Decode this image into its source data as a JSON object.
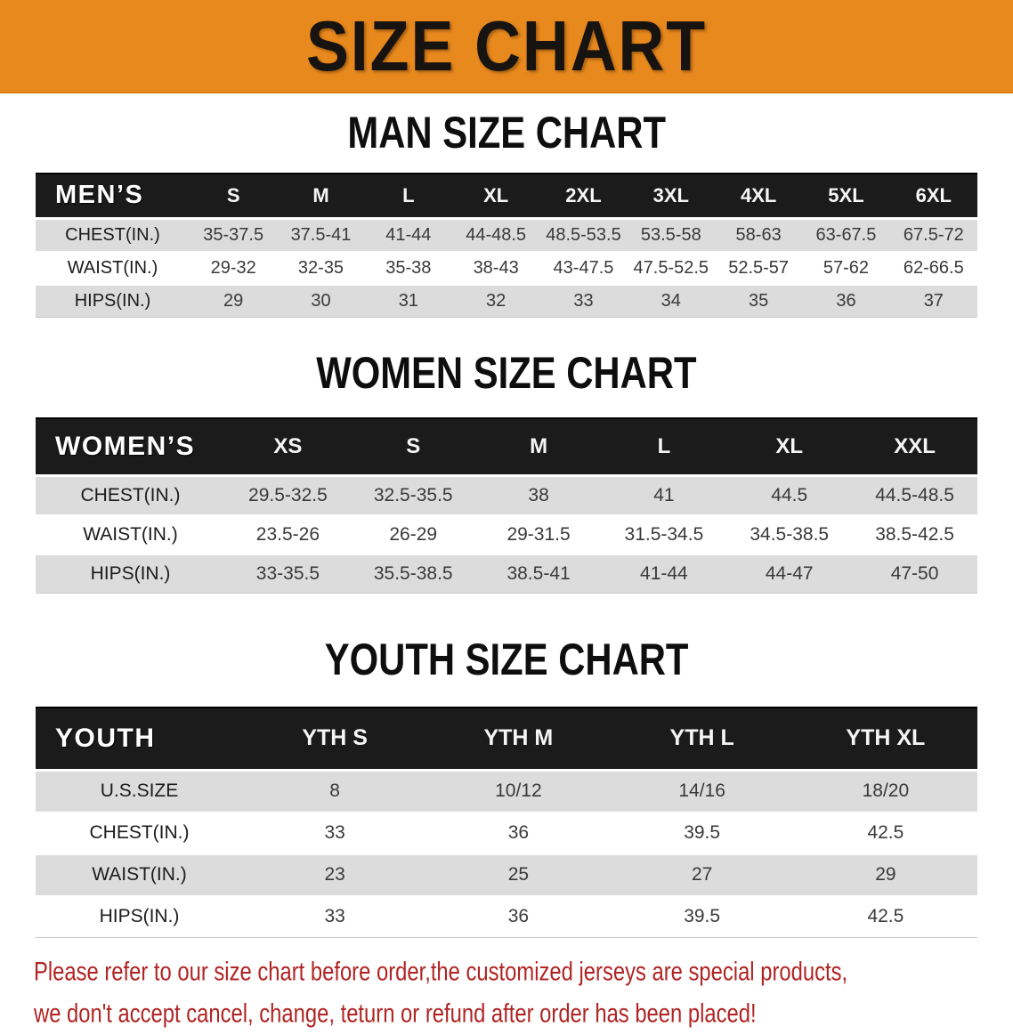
{
  "banner": {
    "title": "SIZE CHART",
    "bg_color": "#E8891E",
    "text_color": "#171310"
  },
  "table_style": {
    "header_bg": "#1B1B1B",
    "header_text": "#FFFFFF",
    "row_gray": "#DCDCDC",
    "row_white": "#FFFFFF"
  },
  "sections": [
    {
      "title": "MAN SIZE CHART",
      "table": {
        "header_label": "MEN’S",
        "columns": [
          "S",
          "M",
          "L",
          "XL",
          "2XL",
          "3XL",
          "4XL",
          "5XL",
          "6XL"
        ],
        "rows": [
          {
            "label": "CHEST(IN.)",
            "values": [
              "35-37.5",
              "37.5-41",
              "41-44",
              "44-48.5",
              "48.5-53.5",
              "53.5-58",
              "58-63",
              "63-67.5",
              "67.5-72"
            ]
          },
          {
            "label": "WAIST(IN.)",
            "values": [
              "29-32",
              "32-35",
              "35-38",
              "38-43",
              "43-47.5",
              "47.5-52.5",
              "52.5-57",
              "57-62",
              "62-66.5"
            ]
          },
          {
            "label": "HIPS(IN.)",
            "values": [
              "29",
              "30",
              "31",
              "32",
              "33",
              "34",
              "35",
              "36",
              "37"
            ]
          }
        ]
      }
    },
    {
      "title": "WOMEN SIZE CHART",
      "table": {
        "header_label": "WOMEN’S",
        "columns": [
          "XS",
          "S",
          "M",
          "L",
          "XL",
          "XXL"
        ],
        "rows": [
          {
            "label": "CHEST(IN.)",
            "values": [
              "29.5-32.5",
              "32.5-35.5",
              "38",
              "41",
              "44.5",
              "44.5-48.5"
            ]
          },
          {
            "label": "WAIST(IN.)",
            "values": [
              "23.5-26",
              "26-29",
              "29-31.5",
              "31.5-34.5",
              "34.5-38.5",
              "38.5-42.5"
            ]
          },
          {
            "label": "HIPS(IN.)",
            "values": [
              "33-35.5",
              "35.5-38.5",
              "38.5-41",
              "41-44",
              "44-47",
              "47-50"
            ]
          }
        ]
      }
    },
    {
      "title": "YOUTH SIZE CHART",
      "table": {
        "header_label": "YOUTH",
        "columns": [
          "YTH S",
          "YTH M",
          "YTH L",
          "YTH XL"
        ],
        "rows": [
          {
            "label": "U.S.SIZE",
            "values": [
              "8",
              "10/12",
              "14/16",
              "18/20"
            ]
          },
          {
            "label": "CHEST(IN.)",
            "values": [
              "33",
              "36",
              "39.5",
              "42.5"
            ]
          },
          {
            "label": "WAIST(IN.)",
            "values": [
              "23",
              "25",
              "27",
              "29"
            ]
          },
          {
            "label": "HIPS(IN.)",
            "values": [
              "33",
              "36",
              "39.5",
              "42.5"
            ]
          }
        ]
      }
    }
  ],
  "footer": {
    "line1": "Please refer to our size chart before order,the customized jerseys are special products,",
    "line2": "we don't accept cancel, change, teturn or refund after order has been placed!",
    "color": "#B02423"
  }
}
